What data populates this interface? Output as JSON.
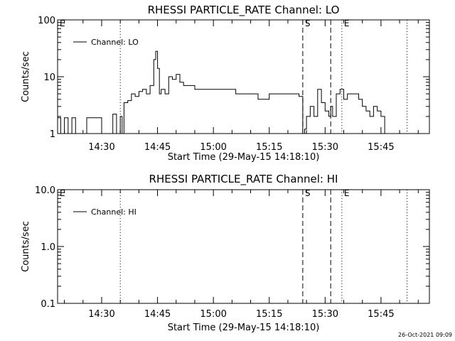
{
  "chart_data": [
    {
      "type": "line",
      "title": "RHESSI PARTICLE_RATE Channel: LO",
      "xlabel": "Start Time (29-May-15 14:18:10)",
      "ylabel": "Counts/sec",
      "yscale": "log",
      "ylim": [
        1,
        100
      ],
      "xlim": [
        "14:18:10",
        "15:58:00"
      ],
      "xticks": [
        "14:30",
        "14:45",
        "15:00",
        "15:15",
        "15:30",
        "15:45"
      ],
      "yticks": [
        "1",
        "10",
        "100"
      ],
      "grid": false,
      "legend": {
        "placement": "top-left",
        "entries": [
          "Channel: LO"
        ]
      },
      "series": [
        {
          "name": "Channel: LO",
          "x": [
            "14:18:10",
            "14:19:00",
            "14:20:00",
            "14:21:00",
            "14:22:00",
            "14:23:00",
            "14:24:00",
            "14:25:00",
            "14:26:00",
            "14:28:00",
            "14:30:00",
            "14:31:00",
            "14:33:00",
            "14:34:00",
            "14:35:00",
            "14:35:30",
            "14:36:00",
            "14:37:00",
            "14:38:00",
            "14:39:00",
            "14:40:00",
            "14:41:00",
            "14:42:00",
            "14:43:00",
            "14:44:00",
            "14:44:30",
            "14:45:00",
            "14:45:30",
            "14:46:00",
            "14:47:00",
            "14:48:00",
            "14:49:00",
            "14:50:00",
            "14:51:00",
            "14:52:00",
            "14:53:00",
            "14:55:00",
            "14:58:00",
            "15:00:00",
            "15:03:00",
            "15:06:00",
            "15:09:00",
            "15:12:00",
            "15:15:00",
            "15:18:00",
            "15:20:00",
            "15:22:00",
            "15:23:00",
            "15:24:00",
            "15:24:30",
            "15:25:00",
            "15:26:00",
            "15:27:00",
            "15:28:00",
            "15:29:00",
            "15:30:00",
            "15:31:00",
            "15:31:30",
            "15:32:00",
            "15:33:00",
            "15:34:00",
            "15:35:00",
            "15:36:00",
            "15:37:00",
            "15:38:00",
            "15:39:00",
            "15:40:00",
            "15:41:00",
            "15:42:00",
            "15:43:00",
            "15:44:00",
            "15:45:00",
            "15:46:00",
            "15:47:00",
            "15:48:00",
            "15:49:00",
            "15:50:00",
            "15:51:00",
            "15:52:00"
          ],
          "y": [
            1.9,
            1,
            1.9,
            1,
            1.9,
            1,
            1,
            1,
            1.9,
            1.9,
            1,
            1,
            2.2,
            1,
            2,
            1,
            3.5,
            3.8,
            5,
            4.5,
            5.5,
            6,
            5,
            7,
            20,
            28,
            14,
            5,
            6,
            5,
            10,
            9,
            11,
            8,
            7,
            7,
            6,
            6,
            6,
            6,
            5,
            5,
            4,
            5,
            5,
            5,
            5,
            4.5,
            1,
            1.2,
            2,
            3,
            2,
            6,
            3.5,
            2.5,
            2,
            3,
            2,
            5,
            6,
            4,
            5,
            5,
            5,
            4,
            3,
            2.5,
            2,
            3,
            2.5,
            2,
            1,
            1,
            1,
            1,
            1,
            1,
            1
          ]
        }
      ],
      "markers": [
        {
          "label": "E",
          "x": "14:18:10",
          "style": "dotted"
        },
        {
          "label": "",
          "x": "14:35:00",
          "style": "dotted"
        },
        {
          "label": "S",
          "x": "15:24:00",
          "style": "dashed"
        },
        {
          "label": "",
          "x": "15:31:30",
          "style": "dashed"
        },
        {
          "label": "E",
          "x": "15:34:30",
          "style": "dotted"
        },
        {
          "label": "",
          "x": "15:52:00",
          "style": "dotted"
        }
      ]
    },
    {
      "type": "line",
      "title": "RHESSI PARTICLE_RATE Channel: HI",
      "xlabel": "Start Time (29-May-15 14:18:10)",
      "ylabel": "Counts/sec",
      "yscale": "log",
      "ylim": [
        0.1,
        10.0
      ],
      "xlim": [
        "14:18:10",
        "15:58:00"
      ],
      "xticks": [
        "14:30",
        "14:45",
        "15:00",
        "15:15",
        "15:30",
        "15:45"
      ],
      "yticks": [
        "0.1",
        "1.0",
        "10.0"
      ],
      "grid": false,
      "legend": {
        "placement": "top-left",
        "entries": [
          "Channel: HI"
        ]
      },
      "series": [
        {
          "name": "Channel: HI",
          "x": [],
          "y": []
        }
      ],
      "markers": [
        {
          "label": "E",
          "x": "14:18:10",
          "style": "dotted"
        },
        {
          "label": "",
          "x": "14:35:00",
          "style": "dotted"
        },
        {
          "label": "S",
          "x": "15:24:00",
          "style": "dashed"
        },
        {
          "label": "",
          "x": "15:31:30",
          "style": "dashed"
        },
        {
          "label": "E",
          "x": "15:34:30",
          "style": "dotted"
        },
        {
          "label": "",
          "x": "15:52:00",
          "style": "dotted"
        }
      ]
    }
  ],
  "footer": {
    "timestamp": "26-Oct-2021 09:09"
  }
}
